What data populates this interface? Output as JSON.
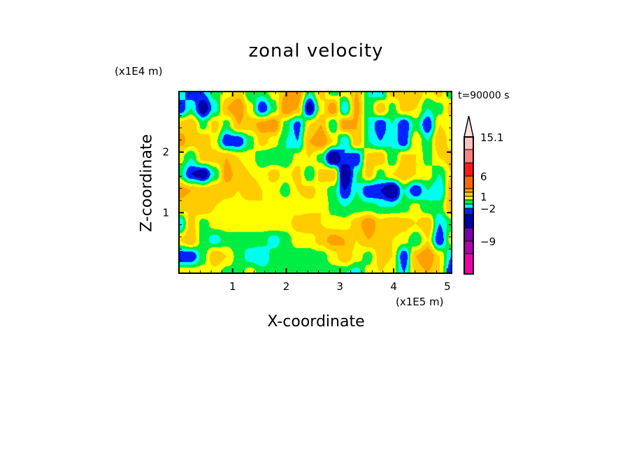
{
  "chart_data": {
    "type": "heatmap",
    "title": "zonal velocity",
    "xlabel": "X-coordinate",
    "ylabel": "Z-coordinate",
    "x_unit": "(x1E5 m)",
    "y_unit": "(x1E4 m)",
    "annotation": "t=90000 s",
    "xlim": [
      0,
      5.08
    ],
    "ylim": [
      0,
      3
    ],
    "x_ticks": [
      "1",
      "2",
      "3",
      "4",
      "5"
    ],
    "y_ticks": [
      "1",
      "2"
    ],
    "colorbar": {
      "labels": [
        "15.1",
        "6",
        "1",
        "−2",
        "−9"
      ],
      "label_values": [
        15.1,
        6,
        1,
        -2,
        -9
      ],
      "levels": [
        -15,
        -12,
        -9,
        -6,
        -3,
        -2,
        -1,
        0,
        1,
        2,
        3,
        6,
        9,
        12,
        15.1
      ],
      "colors": [
        "#ee00aa",
        "#b000b0",
        "#7700aa",
        "#0000aa",
        "#0022ff",
        "#00ffee",
        "#00ee44",
        "#ffff00",
        "#ffcc00",
        "#ffa000",
        "#ff6600",
        "#ff1818",
        "#ff8080",
        "#ffc0c0",
        "#ffe0e0"
      ]
    },
    "grid_note_rows_top_to_bottom": true,
    "z": [
      [
        -1,
        -3,
        -2,
        -0.5,
        0.5,
        1.5,
        -1,
        -0.5,
        0.5,
        2,
        3,
        -1,
        1.5,
        -0.5,
        0.5,
        2,
        -1,
        -2,
        1.5,
        1.5,
        2,
        0.5,
        1.5,
        -1
      ],
      [
        -3,
        -1,
        -4,
        -1.5,
        2,
        3,
        0.5,
        -3,
        -0.5,
        3,
        2,
        -4,
        0.5,
        3,
        -2,
        2.5,
        -1,
        2,
        -0.5,
        1.5,
        1,
        -1,
        -0.5,
        1.5
      ],
      [
        1.5,
        2,
        -0.5,
        1.5,
        -0.5,
        2,
        1.5,
        2.5,
        3,
        -0.5,
        -2.5,
        1,
        2,
        -1,
        3,
        2,
        -1,
        -3,
        -1,
        -3,
        -0.5,
        -3,
        1,
        0.5
      ],
      [
        2.5,
        1.5,
        2,
        0.5,
        -3,
        -3,
        -0.5,
        1.5,
        0.5,
        -1,
        -2,
        2,
        3,
        1,
        -2,
        2,
        -1,
        -2,
        -1,
        -3,
        1,
        -1,
        2,
        0.5
      ],
      [
        0.5,
        -1,
        1.5,
        1.5,
        2,
        1,
        0.5,
        -1,
        -1,
        -1,
        0.5,
        1,
        -0.5,
        -5,
        -2,
        -3,
        1.5,
        2,
        -1,
        1.5,
        1,
        -0.5,
        1,
        1.5
      ],
      [
        -0.5,
        -3,
        -4,
        -1,
        2.5,
        1.5,
        1,
        0.5,
        1.5,
        0.5,
        1.5,
        -1,
        1.5,
        2,
        -5,
        -1,
        1.5,
        -0.5,
        1,
        2,
        1,
        0.5,
        -1,
        1
      ],
      [
        2.5,
        2,
        1.5,
        2,
        1.5,
        1,
        2,
        1,
        0.5,
        -0.5,
        1,
        1.5,
        0.5,
        -0.5,
        -3,
        -1,
        -3,
        -3,
        -5,
        -1,
        -3,
        -1,
        -2,
        2
      ],
      [
        1.5,
        1,
        2,
        1,
        0.5,
        0.5,
        0.5,
        1,
        0.5,
        1,
        0.5,
        0.5,
        1,
        -0.5,
        -1,
        -0.5,
        -0.5,
        -1,
        -1,
        -0.5,
        0.5,
        -1,
        -0.5,
        2
      ],
      [
        -2,
        1.5,
        -0.5,
        0.5,
        0.5,
        1,
        0.5,
        0.5,
        1,
        0.5,
        1.5,
        2,
        1,
        0.5,
        0.5,
        1.5,
        3,
        1.5,
        2,
        1.5,
        1,
        2,
        -2,
        -0.5
      ],
      [
        1,
        2,
        -0.5,
        -1.5,
        -0.5,
        -1,
        -0.5,
        -0.5,
        -1.5,
        -0.5,
        0.5,
        0.5,
        1.5,
        2.5,
        2,
        1,
        2,
        1.5,
        1,
        0.5,
        -1,
        1,
        -3,
        0.5
      ],
      [
        -3,
        -3,
        -0.5,
        2,
        1,
        -0.5,
        -1.5,
        -2,
        -0.5,
        -0.5,
        -0.5,
        -0.5,
        -0.5,
        0.5,
        2,
        0.5,
        -0.5,
        1.5,
        1,
        -3,
        2,
        3,
        1,
        -2
      ],
      [
        1,
        1,
        0.5,
        0.5,
        -0.5,
        -0.5,
        0.5,
        -0.5,
        -0.5,
        -0.5,
        -0.5,
        -0.5,
        -1,
        -0.5,
        -1,
        -1.5,
        0.5,
        1,
        0.5,
        -2,
        1.5,
        2,
        1,
        -3
      ]
    ]
  }
}
